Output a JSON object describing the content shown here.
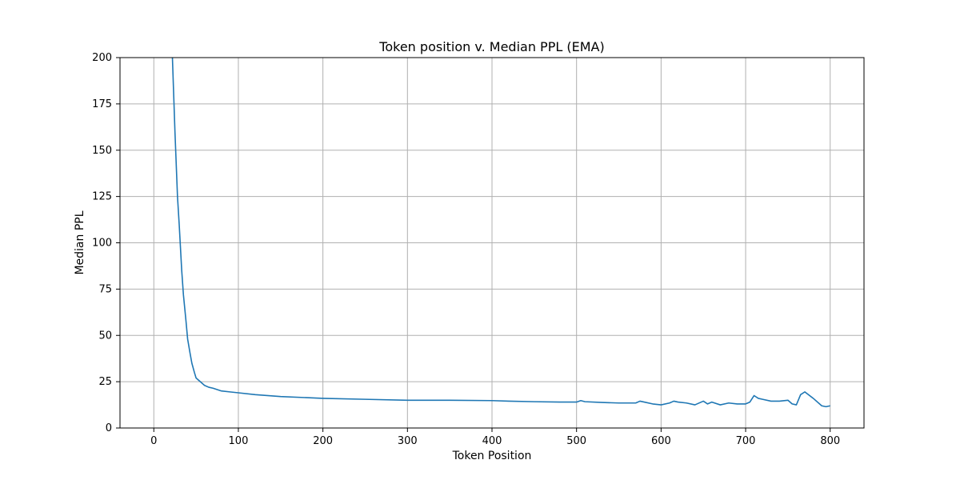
{
  "chart_data": {
    "type": "line",
    "title": "Token position v. Median PPL (EMA)",
    "xlabel": "Token Position",
    "ylabel": "Median PPL",
    "xlim": [
      -40,
      840
    ],
    "ylim": [
      0,
      200
    ],
    "xticks": [
      0,
      100,
      200,
      300,
      400,
      500,
      600,
      700,
      800
    ],
    "yticks": [
      0,
      25,
      50,
      75,
      100,
      125,
      150,
      175,
      200
    ],
    "grid": true,
    "legend": "none",
    "series": [
      {
        "color": "#1f77b4",
        "x": [
          22,
          25,
          28,
          30,
          33,
          35,
          38,
          40,
          43,
          45,
          48,
          50,
          55,
          60,
          65,
          70,
          80,
          90,
          100,
          120,
          150,
          200,
          250,
          300,
          350,
          400,
          420,
          450,
          480,
          500,
          505,
          510,
          530,
          550,
          570,
          575,
          580,
          590,
          600,
          610,
          615,
          620,
          630,
          640,
          650,
          655,
          660,
          670,
          680,
          690,
          700,
          705,
          710,
          715,
          720,
          730,
          740,
          750,
          755,
          760,
          765,
          770,
          780,
          790,
          795,
          800
        ],
        "y": [
          200,
          160,
          125,
          110,
          85,
          72,
          58,
          48,
          40,
          35,
          30,
          27,
          25,
          23,
          22,
          21.5,
          20,
          19.5,
          19,
          18,
          17,
          16,
          15.5,
          15,
          15,
          14.8,
          14.5,
          14.2,
          14,
          14,
          14.8,
          14.2,
          13.8,
          13.5,
          13.5,
          14.5,
          14,
          13,
          12.5,
          13.5,
          14.5,
          14,
          13.5,
          12.5,
          14.5,
          13,
          14,
          12.5,
          13.5,
          13,
          13,
          14,
          17.5,
          16,
          15.5,
          14.5,
          14.5,
          15,
          13,
          12.5,
          18,
          19.5,
          16,
          12,
          11.5,
          12
        ]
      }
    ]
  }
}
